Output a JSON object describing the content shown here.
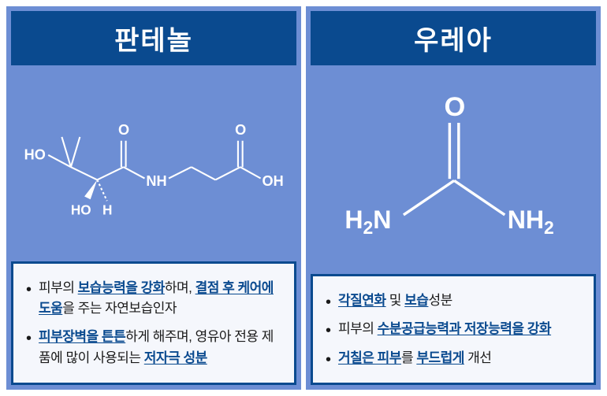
{
  "colors": {
    "card_bg": "#6d8ed4",
    "header_bg": "#0a4a8f",
    "header_text": "#ffffff",
    "desc_bg": "#f5f7fc",
    "desc_border": "#0a4a8f",
    "body_text": "#1a1a1a",
    "emphasis": "#0a4a8f",
    "chem_stroke": "#ffffff",
    "chem_text": "#ffffff"
  },
  "typography": {
    "header_fontsize": 34,
    "bullet_fontsize": 17,
    "chem_label_fontsize": 20
  },
  "cards": [
    {
      "title": "판테놀",
      "chem_svg_viewbox": "0 0 360 160",
      "chem_labels": {
        "HO1": "HO",
        "HO2": "HO",
        "H": "H",
        "NH": "NH",
        "O1": "O",
        "O2": "O",
        "OH": "OH"
      },
      "bullets": [
        [
          {
            "t": "피부의 ",
            "em": false
          },
          {
            "t": "보습능력을 강화",
            "em": true
          },
          {
            "t": "하며, ",
            "em": false
          },
          {
            "t": "결점 후 케어에 도움",
            "em": true
          },
          {
            "t": "을 주는 자연보습인자",
            "em": false
          }
        ],
        [
          {
            "t": "피부장벽을 튼튼",
            "em": true
          },
          {
            "t": "하게 해주며, 영유아 전용 제품에 많이 사용되는 ",
            "em": false
          },
          {
            "t": "저자극 성분",
            "em": true
          }
        ]
      ]
    },
    {
      "title": "우레아",
      "chem_svg_viewbox": "0 0 300 200",
      "chem_labels": {
        "O": "O",
        "H2N_L": "H₂N",
        "NH2_R": "NH₂"
      },
      "bullets": [
        [
          {
            "t": "각질연화",
            "em": true
          },
          {
            "t": " 및 ",
            "em": false
          },
          {
            "t": "보습",
            "em": true
          },
          {
            "t": "성분",
            "em": false
          }
        ],
        [
          {
            "t": "피부의 ",
            "em": false
          },
          {
            "t": "수분공급능력과 저장능력을 강화",
            "em": true
          }
        ],
        [
          {
            "t": "거칠은 피부",
            "em": true
          },
          {
            "t": "를 ",
            "em": false
          },
          {
            "t": "부드럽게",
            "em": true
          },
          {
            "t": " 개선",
            "em": false
          }
        ]
      ]
    }
  ]
}
